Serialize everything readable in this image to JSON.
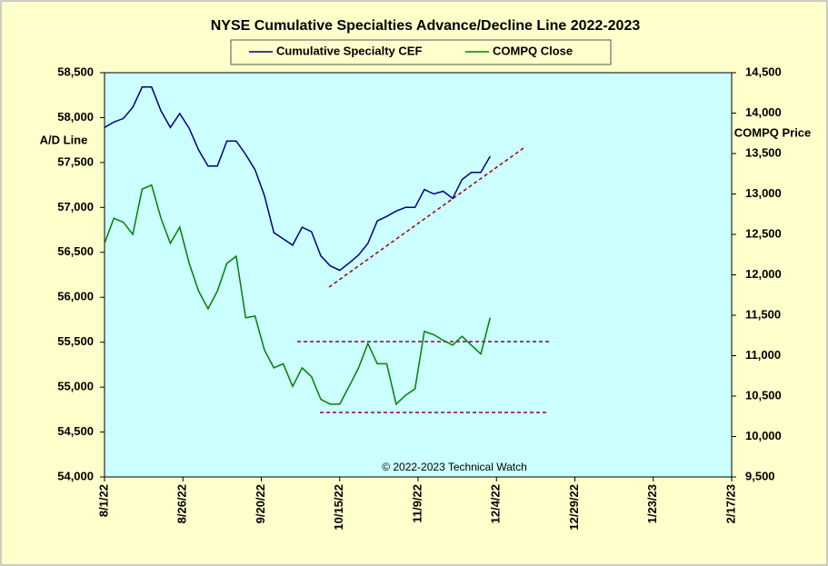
{
  "chart_data": {
    "type": "line",
    "title": "NYSE Cumulative  Specialties  Advance/Decline  Line  2022-2023",
    "ylabel": "A/D Line",
    "y2label": "COMPQ Price",
    "annotation": "© 2022-2023  Technical Watch",
    "x": [
      "2022-08-01",
      "2022-08-04",
      "2022-08-07",
      "2022-08-10",
      "2022-08-13",
      "2022-08-16",
      "2022-08-19",
      "2022-08-22",
      "2022-08-25",
      "2022-08-28",
      "2022-08-31",
      "2022-09-03",
      "2022-09-06",
      "2022-09-09",
      "2022-09-12",
      "2022-09-15",
      "2022-09-18",
      "2022-09-21",
      "2022-09-24",
      "2022-09-27",
      "2022-09-30",
      "2022-10-03",
      "2022-10-06",
      "2022-10-09",
      "2022-10-12",
      "2022-10-15",
      "2022-10-18",
      "2022-10-21",
      "2022-10-24",
      "2022-10-27",
      "2022-10-30",
      "2022-11-02",
      "2022-11-05",
      "2022-11-08",
      "2022-11-11",
      "2022-11-14",
      "2022-11-17",
      "2022-11-20",
      "2022-11-23",
      "2022-11-26",
      "2022-11-29",
      "2022-12-02"
    ],
    "series": [
      {
        "name": "Cumulative Specialty CEF",
        "color": "#000080",
        "axis": "y",
        "values": [
          57890,
          57950,
          57990,
          58115,
          58340,
          58340,
          58075,
          57890,
          58045,
          57880,
          57640,
          57460,
          57460,
          57740,
          57740,
          57590,
          57420,
          57130,
          56720,
          56650,
          56580,
          56780,
          56730,
          56460,
          56350,
          56300,
          56380,
          56470,
          56600,
          56850,
          56900,
          56960,
          57000,
          57000,
          57200,
          57150,
          57180,
          57100,
          57310,
          57390,
          57390,
          57570
        ]
      },
      {
        "name": "COMPQ Close",
        "color": "#008000",
        "axis": "y2",
        "values": [
          12390,
          12700,
          12650,
          12500,
          13060,
          13110,
          12700,
          12390,
          12590,
          12140,
          11800,
          11580,
          11800,
          12140,
          12230,
          11470,
          11490,
          11070,
          10850,
          10900,
          10620,
          10850,
          10740,
          10460,
          10400,
          10400,
          10620,
          10850,
          11150,
          10900,
          10900,
          10400,
          10510,
          10590,
          11300,
          11260,
          11190,
          11130,
          11240,
          11130,
          11020,
          11470
        ]
      }
    ],
    "xlim": [
      "2022-08-01",
      "2023-02-17"
    ],
    "xticks": [
      {
        "value": "2022-08-01",
        "label": "8/1/22"
      },
      {
        "value": "2022-08-26",
        "label": "8/26/22"
      },
      {
        "value": "2022-09-20",
        "label": "9/20/22"
      },
      {
        "value": "2022-10-15",
        "label": "10/15/22"
      },
      {
        "value": "2022-11-09",
        "label": "11/9/22"
      },
      {
        "value": "2022-12-04",
        "label": "12/4/22"
      },
      {
        "value": "2022-12-29",
        "label": "12/29/22"
      },
      {
        "value": "2023-01-23",
        "label": "1/23/23"
      },
      {
        "value": "2023-02-17",
        "label": "2/17/23"
      }
    ],
    "ylim": [
      54000,
      58500
    ],
    "yticks": [
      {
        "value": 54000,
        "label": "54,000"
      },
      {
        "value": 54500,
        "label": "54,500"
      },
      {
        "value": 55000,
        "label": "55,000"
      },
      {
        "value": 55500,
        "label": "55,500"
      },
      {
        "value": 56000,
        "label": "56,000"
      },
      {
        "value": 56500,
        "label": "56,500"
      },
      {
        "value": 57000,
        "label": "57,000"
      },
      {
        "value": 57500,
        "label": "57,500"
      },
      {
        "value": 58000,
        "label": "58,000"
      },
      {
        "value": 58500,
        "label": "58,500"
      }
    ],
    "y2lim": [
      9500,
      14500
    ],
    "y2ticks": [
      {
        "value": 9500,
        "label": "9,500"
      },
      {
        "value": 10000,
        "label": "10,000"
      },
      {
        "value": 10500,
        "label": "10,500"
      },
      {
        "value": 11000,
        "label": "11,000"
      },
      {
        "value": 11500,
        "label": "11,500"
      },
      {
        "value": 12000,
        "label": "12,000"
      },
      {
        "value": 12500,
        "label": "12,500"
      },
      {
        "value": 13000,
        "label": "13,000"
      },
      {
        "value": 13500,
        "label": "13,500"
      },
      {
        "value": 14000,
        "label": "14,000"
      },
      {
        "value": 14500,
        "label": "14,500"
      }
    ]
  }
}
